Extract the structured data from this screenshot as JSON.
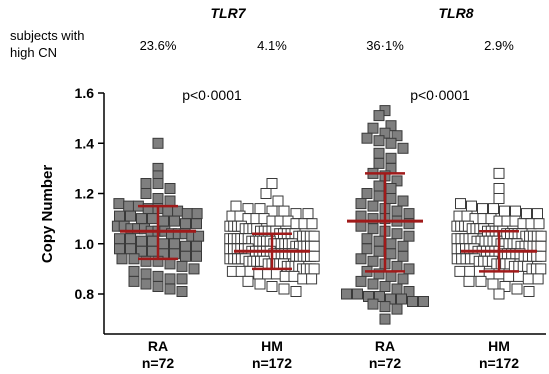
{
  "header": {
    "row_label_line1": "subjects with",
    "row_label_line2": "high CN",
    "genes": [
      "TLR7",
      "TLR8"
    ],
    "percentages": [
      "23.6%",
      "4.1%",
      "36·1%",
      "2.9%"
    ],
    "pvalues": [
      "p<0·0001",
      "p<0·0001"
    ]
  },
  "chart_data": {
    "type": "scatter",
    "ylabel": "Copy Number",
    "ylim": [
      0.7,
      1.6
    ],
    "yticks": [
      {
        "value": 1.6,
        "label": "1.6"
      },
      {
        "value": 1.4,
        "label": "1.4"
      },
      {
        "value": 1.2,
        "label": "1.2"
      },
      {
        "value": 1.0,
        "label": "1.0"
      },
      {
        "value": 0.8,
        "label": "0.8"
      }
    ],
    "groups": [
      {
        "gene": "TLR7",
        "label": "RA",
        "n_label": "n=72",
        "marker": "filled-square",
        "mean": 1.05,
        "sd_low": 0.94,
        "sd_high": 1.15,
        "values": [
          1.4,
          1.3,
          1.27,
          1.24,
          1.24,
          1.22,
          1.2,
          1.18,
          1.17,
          1.16,
          1.15,
          1.15,
          1.14,
          1.14,
          1.13,
          1.13,
          1.12,
          1.12,
          1.11,
          1.11,
          1.1,
          1.1,
          1.09,
          1.09,
          1.08,
          1.08,
          1.07,
          1.07,
          1.06,
          1.06,
          1.06,
          1.05,
          1.05,
          1.05,
          1.04,
          1.04,
          1.04,
          1.03,
          1.03,
          1.02,
          1.02,
          1.01,
          1.01,
          1.0,
          1.0,
          0.99,
          0.99,
          0.98,
          0.98,
          0.97,
          0.97,
          0.96,
          0.96,
          0.95,
          0.95,
          0.94,
          0.94,
          0.93,
          0.93,
          0.92,
          0.91,
          0.9,
          0.89,
          0.88,
          0.87,
          0.86,
          0.86,
          0.85,
          0.84,
          0.83,
          0.82,
          0.81
        ]
      },
      {
        "gene": "TLR7",
        "label": "HM",
        "n_label": "n=172",
        "marker": "open-square",
        "mean": 0.97,
        "sd_low": 0.9,
        "sd_high": 1.04,
        "values": [
          1.24,
          1.2,
          1.17,
          1.15,
          1.14,
          1.14,
          1.13,
          1.13,
          1.12,
          1.12,
          1.11,
          1.11,
          1.1,
          1.1,
          1.1,
          1.09,
          1.09,
          1.09,
          1.08,
          1.08,
          1.08,
          1.07,
          1.07,
          1.07,
          1.07,
          1.06,
          1.06,
          1.06,
          1.06,
          1.05,
          1.05,
          1.05,
          1.05,
          1.05,
          1.04,
          1.04,
          1.04,
          1.04,
          1.04,
          1.03,
          1.03,
          1.03,
          1.03,
          1.03,
          1.02,
          1.02,
          1.02,
          1.02,
          1.02,
          1.02,
          1.01,
          1.01,
          1.01,
          1.01,
          1.01,
          1.01,
          1.0,
          1.0,
          1.0,
          1.0,
          1.0,
          1.0,
          0.99,
          0.99,
          0.99,
          0.99,
          0.99,
          0.99,
          0.98,
          0.98,
          0.98,
          0.98,
          0.98,
          0.98,
          0.97,
          0.97,
          0.97,
          0.97,
          0.97,
          0.97,
          0.96,
          0.96,
          0.96,
          0.96,
          0.96,
          0.96,
          0.95,
          0.95,
          0.95,
          0.95,
          0.95,
          0.95,
          0.94,
          0.94,
          0.94,
          0.94,
          0.94,
          0.93,
          0.93,
          0.93,
          0.93,
          0.93,
          0.92,
          0.92,
          0.92,
          0.92,
          0.92,
          0.91,
          0.91,
          0.91,
          0.91,
          0.9,
          0.9,
          0.9,
          0.9,
          0.89,
          0.89,
          0.89,
          0.88,
          0.88,
          0.88,
          0.87,
          0.87,
          0.86,
          0.86,
          0.85,
          0.84,
          0.83,
          0.82,
          0.81
        ]
      },
      {
        "gene": "TLR8",
        "label": "RA",
        "n_label": "n=72",
        "marker": "filled-square",
        "mean": 1.09,
        "sd_low": 0.89,
        "sd_high": 1.28,
        "values": [
          1.53,
          1.51,
          1.47,
          1.46,
          1.44,
          1.43,
          1.42,
          1.41,
          1.4,
          1.38,
          1.36,
          1.34,
          1.32,
          1.3,
          1.28,
          1.27,
          1.25,
          1.23,
          1.22,
          1.2,
          1.19,
          1.18,
          1.17,
          1.16,
          1.15,
          1.14,
          1.13,
          1.12,
          1.11,
          1.1,
          1.1,
          1.09,
          1.08,
          1.07,
          1.06,
          1.05,
          1.04,
          1.03,
          1.02,
          1.01,
          1.0,
          0.99,
          0.98,
          0.97,
          0.96,
          0.95,
          0.94,
          0.93,
          0.92,
          0.91,
          0.9,
          0.89,
          0.88,
          0.87,
          0.86,
          0.85,
          0.84,
          0.83,
          0.82,
          0.81,
          0.8,
          0.8,
          0.79,
          0.79,
          0.78,
          0.78,
          0.77,
          0.77,
          0.76,
          0.75,
          0.74,
          0.7
        ]
      },
      {
        "gene": "TLR8",
        "label": "HM",
        "n_label": "n=172",
        "marker": "open-square",
        "mean": 0.97,
        "sd_low": 0.89,
        "sd_high": 1.05,
        "values": [
          1.28,
          1.22,
          1.18,
          1.16,
          1.15,
          1.14,
          1.14,
          1.13,
          1.13,
          1.12,
          1.12,
          1.11,
          1.11,
          1.1,
          1.1,
          1.1,
          1.09,
          1.09,
          1.09,
          1.08,
          1.08,
          1.08,
          1.07,
          1.07,
          1.07,
          1.07,
          1.06,
          1.06,
          1.06,
          1.06,
          1.05,
          1.05,
          1.05,
          1.05,
          1.05,
          1.04,
          1.04,
          1.04,
          1.04,
          1.04,
          1.03,
          1.03,
          1.03,
          1.03,
          1.03,
          1.02,
          1.02,
          1.02,
          1.02,
          1.02,
          1.01,
          1.01,
          1.01,
          1.01,
          1.01,
          1.01,
          1.0,
          1.0,
          1.0,
          1.0,
          1.0,
          0.99,
          0.99,
          0.99,
          0.99,
          0.99,
          0.99,
          0.98,
          0.98,
          0.98,
          0.98,
          0.98,
          0.97,
          0.97,
          0.97,
          0.97,
          0.97,
          0.97,
          0.96,
          0.96,
          0.96,
          0.96,
          0.96,
          0.95,
          0.95,
          0.95,
          0.95,
          0.95,
          0.94,
          0.94,
          0.94,
          0.94,
          0.94,
          0.93,
          0.93,
          0.93,
          0.93,
          0.92,
          0.92,
          0.92,
          0.92,
          0.91,
          0.91,
          0.91,
          0.91,
          0.9,
          0.9,
          0.9,
          0.89,
          0.89,
          0.89,
          0.88,
          0.88,
          0.87,
          0.87,
          0.86,
          0.86,
          0.85,
          0.85,
          0.84,
          0.83,
          0.82,
          0.81,
          0.8
        ]
      }
    ],
    "colors": {
      "filled_marker": "#7f7f7f",
      "marker_stroke": "#3a3a3a",
      "open_marker": "#ffffff",
      "summary_bars": "#a01a1a",
      "axis": "#000000"
    }
  }
}
